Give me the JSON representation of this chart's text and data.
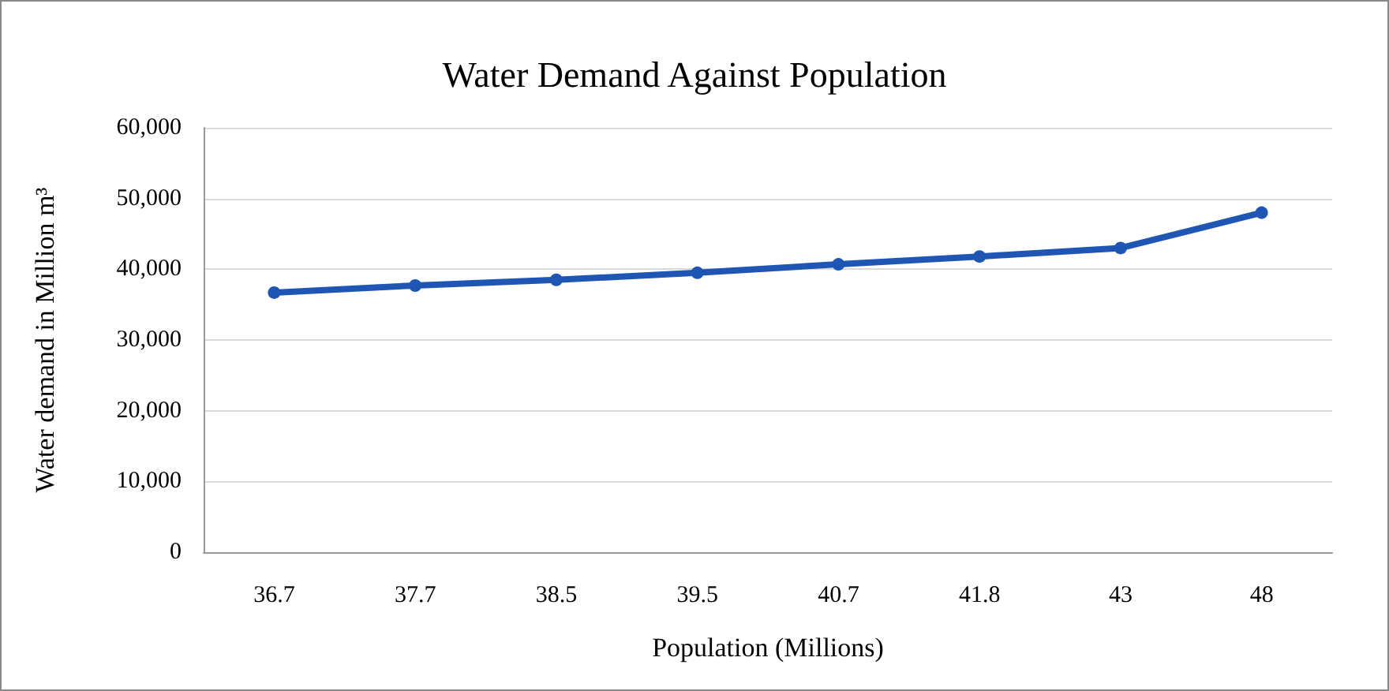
{
  "chart_data": {
    "type": "line",
    "title": "Water Demand Against Population",
    "xlabel": "Population (Millions)",
    "ylabel": "Water demand in Million m³",
    "categories": [
      "36.7",
      "37.7",
      "38.5",
      "39.5",
      "40.7",
      "41.8",
      "43",
      "48"
    ],
    "series": [
      {
        "color": "#1f56b4",
        "values": [
          36700,
          37700,
          38500,
          39500,
          40700,
          41800,
          43000,
          48000
        ]
      }
    ],
    "ylim": [
      0,
      60000
    ],
    "yticks": [
      0,
      {
        "value": 10000,
        "label": "10,000"
      },
      {
        "value": 20000,
        "label": "20,000"
      },
      {
        "value": 30000,
        "label": "30,000"
      },
      {
        "value": 40000,
        "label": "40,000"
      },
      {
        "value": 50000,
        "label": "50,000"
      },
      {
        "value": 60000,
        "label": "60,000"
      }
    ],
    "grid": "y",
    "marker": "circle",
    "line_style": "solid"
  }
}
